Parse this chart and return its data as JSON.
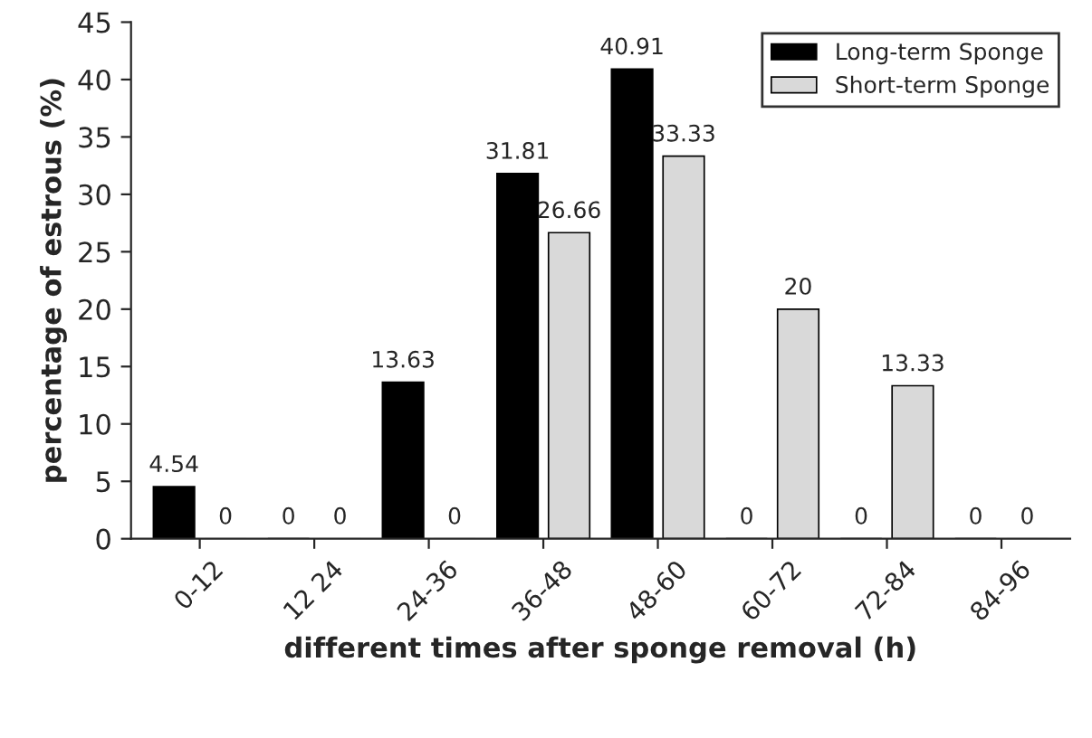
{
  "chart_data": {
    "type": "bar",
    "xlabel": "different times after sponge removal (h)",
    "ylabel": "percentage of estrous (%)",
    "categories": [
      "0-12",
      "12 24",
      "24-36",
      "36-48",
      "48-60",
      "60-72",
      "72-84",
      "84-96"
    ],
    "series": [
      {
        "name": "Long-term Sponge",
        "color": "#000000",
        "values": [
          4.54,
          0,
          13.63,
          31.81,
          40.91,
          0,
          0,
          0
        ]
      },
      {
        "name": "Short-term Sponge",
        "color": "#d9d9d9",
        "values": [
          0,
          0,
          0,
          26.66,
          33.33,
          20,
          13.33,
          0
        ]
      }
    ],
    "ylim": [
      0,
      45
    ],
    "yticks": [
      0,
      5,
      10,
      15,
      20,
      25,
      30,
      35,
      40,
      45
    ],
    "data_labels": true,
    "legend": "top right",
    "grid": false
  }
}
